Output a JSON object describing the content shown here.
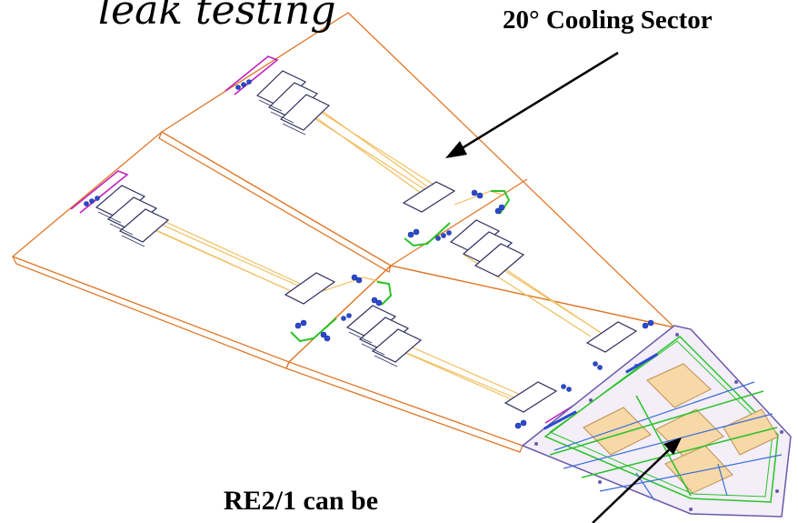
{
  "labels": {
    "title_fragment": "leak testing",
    "sector_label": "20° Cooling Sector",
    "bottom_fragment": "RE2/1 can be"
  },
  "colors": {
    "panel_outline": "#e0782a",
    "tubing": "#f0c060",
    "module_fill": "#ffffff",
    "module_outline": "#303060",
    "connector": "#2a4bd0",
    "manifold": "#c020c0",
    "green_line": "#29c229",
    "chamber_outline": "#6a5aa8",
    "chamber_pad": "#f7d9a8",
    "blue_line": "#3a6fd8"
  }
}
